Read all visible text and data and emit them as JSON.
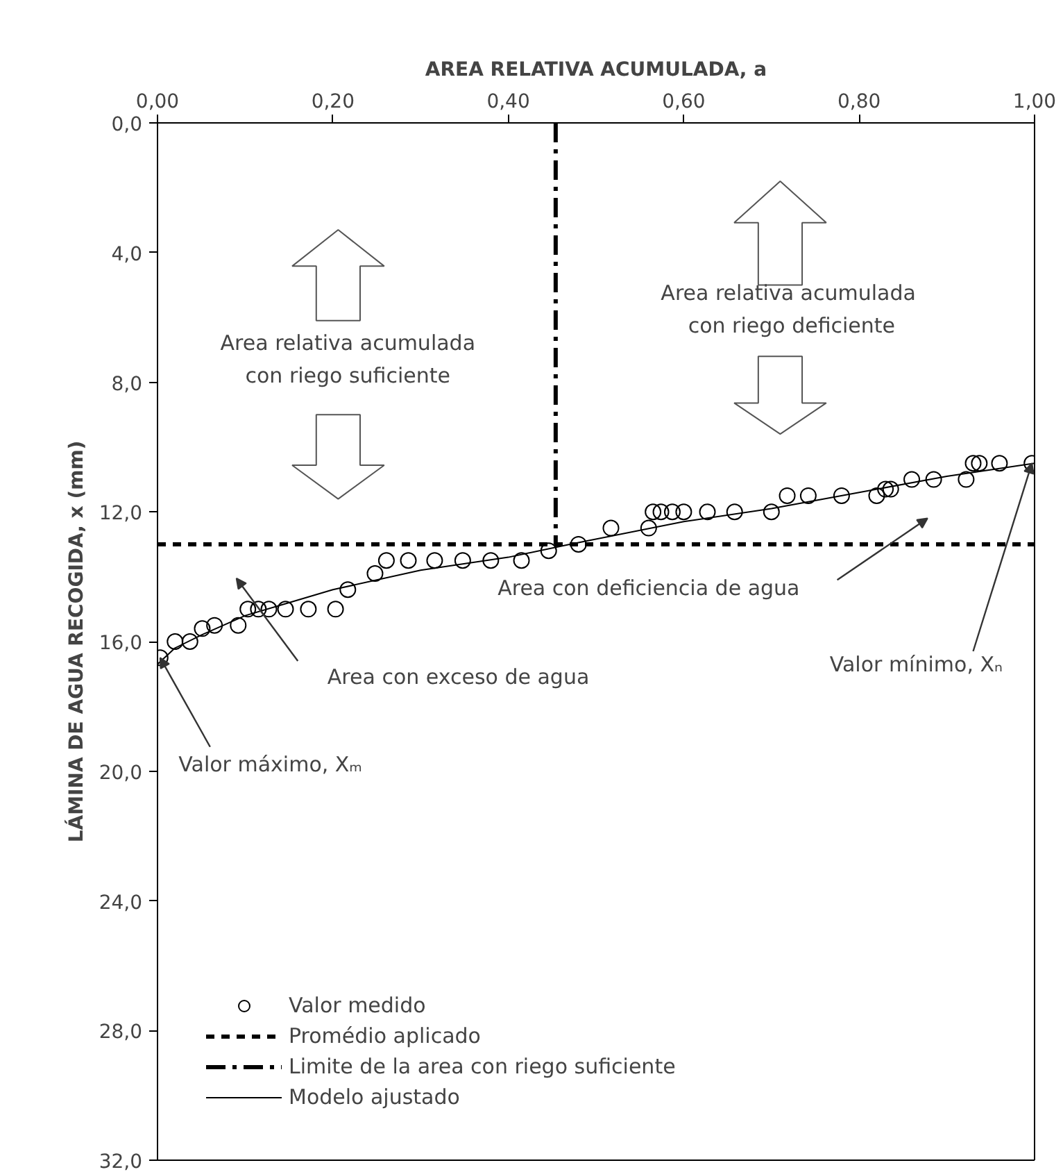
{
  "chart_data": {
    "type": "scatter",
    "xlabel": "AREA RELATIVA ACUMULADA, a",
    "ylabel": "LÁMINA DE AGUA RECOGIDA, x (mm)",
    "xlim": [
      0,
      1
    ],
    "ylim": [
      32,
      0
    ],
    "xticks": [
      {
        "value": 0,
        "label": "0,00"
      },
      {
        "value": 0.2,
        "label": "0,20"
      },
      {
        "value": 0.4,
        "label": "0,40"
      },
      {
        "value": 0.6,
        "label": "0,60"
      },
      {
        "value": 0.8,
        "label": "0,80"
      },
      {
        "value": 1,
        "label": "1,00"
      }
    ],
    "yticks": [
      {
        "value": 0,
        "label": "0,0"
      },
      {
        "value": 4,
        "label": "4,0"
      },
      {
        "value": 8,
        "label": "8,0"
      },
      {
        "value": 12,
        "label": "12,0"
      },
      {
        "value": 16,
        "label": "16,0"
      },
      {
        "value": 20,
        "label": "20,0"
      },
      {
        "value": 24,
        "label": "24,0"
      },
      {
        "value": 28,
        "label": "28,0"
      },
      {
        "value": 32,
        "label": "32,0"
      }
    ],
    "grid": false,
    "legend": "bottom left",
    "series": [
      {
        "name": "Valor medido",
        "marker": "circle",
        "color": "#000000",
        "x": [
          0.003,
          0.02,
          0.037,
          0.051,
          0.065,
          0.092,
          0.103,
          0.115,
          0.127,
          0.146,
          0.172,
          0.203,
          0.217,
          0.248,
          0.261,
          0.286,
          0.316,
          0.348,
          0.38,
          0.415,
          0.446,
          0.48,
          0.517,
          0.56,
          0.565,
          0.574,
          0.587,
          0.6,
          0.627,
          0.658,
          0.7,
          0.718,
          0.742,
          0.78,
          0.82,
          0.83,
          0.836,
          0.86,
          0.885,
          0.922,
          0.93,
          0.937,
          0.96,
          0.997
        ],
        "values": [
          16.5,
          16.0,
          16.0,
          15.6,
          15.5,
          15.5,
          15.0,
          15.0,
          15.0,
          15.0,
          15.0,
          15.0,
          14.4,
          13.9,
          13.5,
          13.5,
          13.5,
          13.5,
          13.5,
          13.5,
          13.2,
          13.0,
          12.5,
          12.5,
          12.0,
          12.0,
          12.0,
          12.0,
          12.0,
          12.0,
          12.0,
          11.5,
          11.5,
          11.5,
          11.5,
          11.3,
          11.3,
          11.0,
          11.0,
          11.0,
          10.5,
          10.5,
          10.5,
          10.5
        ]
      },
      {
        "name": "Promédio aplicado",
        "type": "line",
        "line_style": "dashed",
        "color": "#000000",
        "x": [
          0,
          1
        ],
        "values": [
          13.0,
          13.0
        ]
      },
      {
        "name": "Limite de la area con riego suficiente",
        "type": "line",
        "line_style": "dashdot",
        "color": "#000000",
        "x": [
          0.454,
          0.454
        ],
        "values": [
          0,
          13.0
        ]
      },
      {
        "name": "Modelo ajustado",
        "type": "line",
        "line_style": "solid",
        "color": "#000000",
        "x": [
          0,
          0.02,
          0.05,
          0.1,
          0.15,
          0.2,
          0.3,
          0.4,
          0.47,
          0.6,
          0.7,
          0.8,
          0.9,
          1.0
        ],
        "values": [
          16.7,
          16.2,
          15.8,
          15.2,
          14.8,
          14.4,
          13.8,
          13.4,
          13.0,
          12.3,
          11.9,
          11.4,
          10.9,
          10.5
        ]
      }
    ],
    "annotations": [
      "Area relativa acumulada\ncon riego suficiente",
      "Area  relativa acumulada\ncon riego deficiente",
      "Area con exceso de agua",
      "Area con deficiencia de agua",
      {
        "text": "Valor máximo, Xₘ",
        "x": 0.003,
        "y": 16.5
      },
      {
        "text": "Valor mínimo, Xₙ",
        "x": 0.997,
        "y": 10.5
      }
    ]
  }
}
